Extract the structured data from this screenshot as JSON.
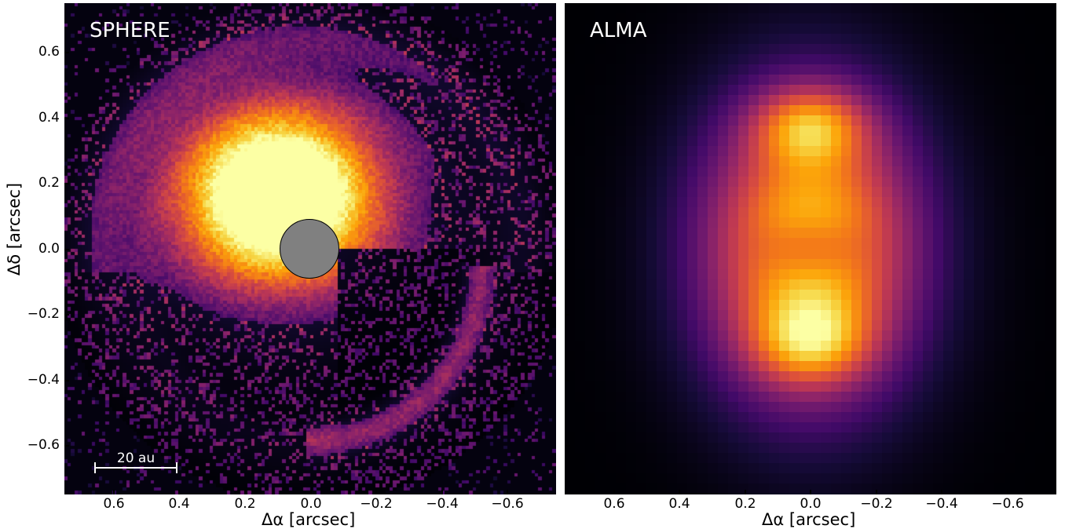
{
  "panels": {
    "sphere": {
      "label": "SPHERE",
      "scalebar_label": "20 au",
      "x_title": "Δα [arcsec]",
      "y_title": "Δδ [arcsec]",
      "x_ticks": [
        "0.6",
        "0.4",
        "0.2",
        "0.0",
        "−0.2",
        "−0.4",
        "−0.6"
      ],
      "y_ticks": [
        "0.6",
        "0.4",
        "0.2",
        "0.0",
        "−0.2",
        "−0.4",
        "−0.6"
      ]
    },
    "alma": {
      "label": "ALMA",
      "x_title": "Δα [arcsec]",
      "x_ticks": [
        "0.6",
        "0.4",
        "0.2",
        "0.0",
        "−0.2",
        "−0.4",
        "−0.6"
      ]
    }
  },
  "colormap": "inferno",
  "colors": {
    "background": "#000004",
    "mask": "#808080",
    "label": "#ffffff"
  }
}
